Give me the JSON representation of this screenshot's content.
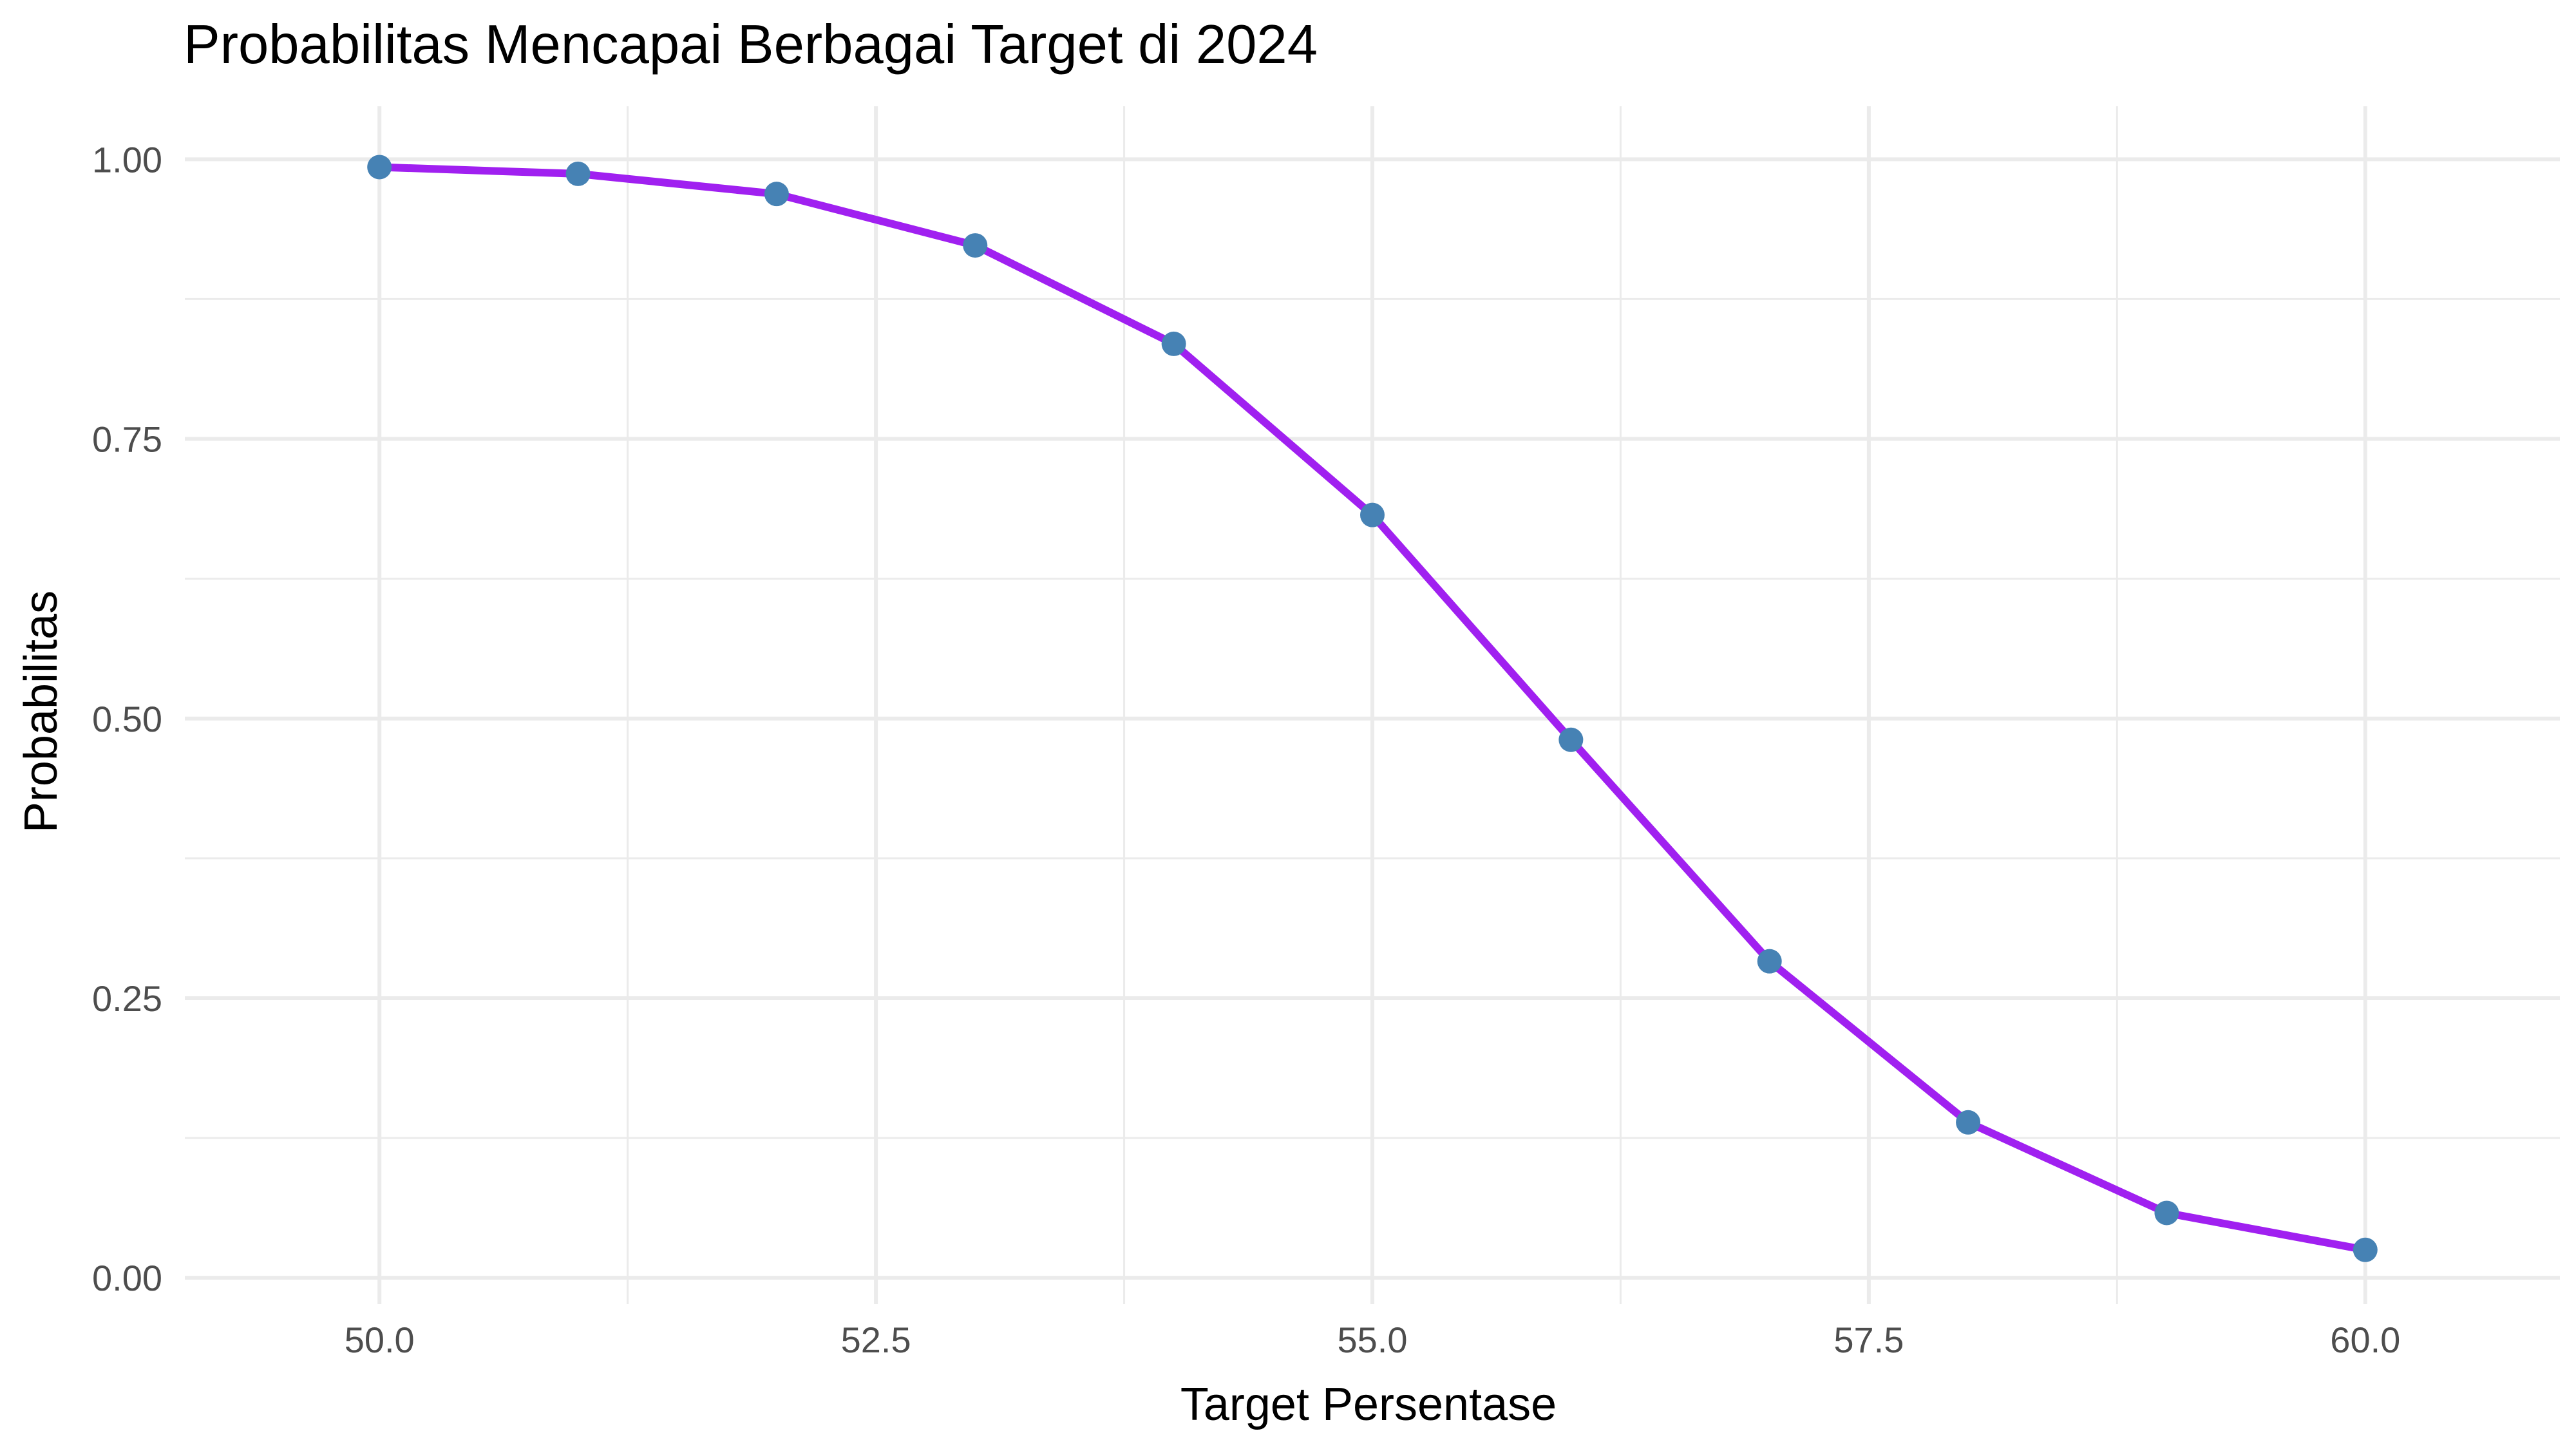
{
  "chart_data": {
    "type": "line",
    "title": "Probabilitas Mencapai Berbagai Target di 2024",
    "xlabel": "Target Persentase",
    "ylabel": "Probabilitas",
    "xlim": [
      49.02,
      60.98
    ],
    "ylim": [
      -0.0235,
      1.0474
    ],
    "x_ticks": [
      50.0,
      52.5,
      55.0,
      57.5,
      60.0
    ],
    "x_tick_labels": [
      "50.0",
      "52.5",
      "55.0",
      "57.5",
      "60.0"
    ],
    "x_minor_ticks": [
      51.25,
      53.75,
      56.25,
      58.75
    ],
    "y_ticks": [
      0.0,
      0.25,
      0.5,
      0.75,
      1.0
    ],
    "y_tick_labels": [
      "0.00",
      "0.25",
      "0.50",
      "0.75",
      "1.00"
    ],
    "y_minor_ticks": [
      0.125,
      0.375,
      0.625,
      0.875
    ],
    "grid": true,
    "legend": "none",
    "x": [
      50,
      51,
      52,
      53,
      54,
      55,
      56,
      57,
      58,
      59,
      60
    ],
    "y": [
      0.993,
      0.987,
      0.969,
      0.923,
      0.835,
      0.682,
      0.481,
      0.283,
      0.139,
      0.058,
      0.025
    ],
    "line_color": "#A020F0",
    "point_color": "#4682B4"
  }
}
